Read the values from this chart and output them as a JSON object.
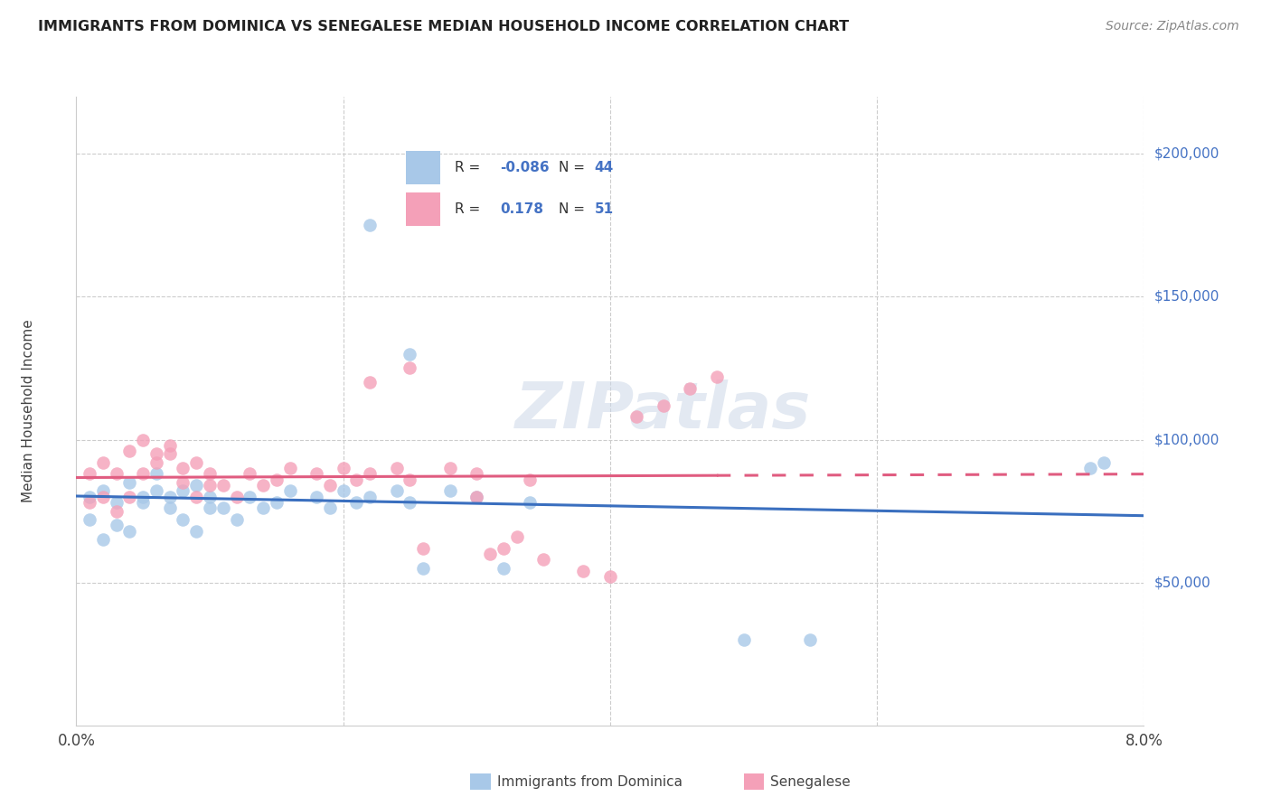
{
  "title": "IMMIGRANTS FROM DOMINICA VS SENEGALESE MEDIAN HOUSEHOLD INCOME CORRELATION CHART",
  "source": "Source: ZipAtlas.com",
  "ylabel": "Median Household Income",
  "xlim": [
    0.0,
    0.08
  ],
  "ylim": [
    0,
    220000
  ],
  "blue_color": "#a8c8e8",
  "pink_color": "#f4a0b8",
  "line_blue": "#3a6fbf",
  "line_pink": "#e05c80",
  "grid_color": "#cccccc",
  "watermark": "ZIPatlas",
  "dominica_x": [
    0.001,
    0.001,
    0.002,
    0.002,
    0.003,
    0.003,
    0.004,
    0.004,
    0.005,
    0.005,
    0.006,
    0.006,
    0.007,
    0.007,
    0.008,
    0.008,
    0.009,
    0.009,
    0.01,
    0.01,
    0.011,
    0.012,
    0.013,
    0.014,
    0.015,
    0.016,
    0.018,
    0.019,
    0.02,
    0.021,
    0.022,
    0.024,
    0.025,
    0.026,
    0.028,
    0.03,
    0.032,
    0.034,
    0.022,
    0.025,
    0.05,
    0.055,
    0.076,
    0.077
  ],
  "dominica_y": [
    80000,
    72000,
    82000,
    65000,
    78000,
    70000,
    85000,
    68000,
    80000,
    78000,
    88000,
    82000,
    80000,
    76000,
    82000,
    72000,
    84000,
    68000,
    80000,
    76000,
    76000,
    72000,
    80000,
    76000,
    78000,
    82000,
    80000,
    76000,
    82000,
    78000,
    80000,
    82000,
    78000,
    55000,
    82000,
    80000,
    55000,
    78000,
    175000,
    130000,
    30000,
    30000,
    90000,
    92000
  ],
  "senegalese_x": [
    0.001,
    0.001,
    0.002,
    0.002,
    0.003,
    0.003,
    0.004,
    0.004,
    0.005,
    0.005,
    0.006,
    0.006,
    0.007,
    0.007,
    0.008,
    0.008,
    0.009,
    0.009,
    0.01,
    0.01,
    0.011,
    0.012,
    0.013,
    0.014,
    0.015,
    0.016,
    0.018,
    0.019,
    0.02,
    0.021,
    0.022,
    0.024,
    0.025,
    0.026,
    0.028,
    0.03,
    0.032,
    0.034,
    0.022,
    0.025,
    0.03,
    0.031,
    0.033,
    0.035,
    0.038,
    0.04,
    0.042,
    0.044,
    0.046,
    0.048
  ],
  "senegalese_y": [
    88000,
    78000,
    92000,
    80000,
    88000,
    75000,
    96000,
    80000,
    100000,
    88000,
    95000,
    92000,
    98000,
    95000,
    90000,
    85000,
    92000,
    80000,
    88000,
    84000,
    84000,
    80000,
    88000,
    84000,
    86000,
    90000,
    88000,
    84000,
    90000,
    86000,
    88000,
    90000,
    86000,
    62000,
    90000,
    88000,
    62000,
    86000,
    120000,
    125000,
    80000,
    60000,
    66000,
    58000,
    54000,
    52000,
    108000,
    112000,
    118000,
    122000
  ],
  "ytick_vals": [
    50000,
    100000,
    150000,
    200000
  ],
  "ytick_labels": [
    "$50,000",
    "$100,000",
    "$150,000",
    "$200,000"
  ],
  "xtick_vals": [
    0.0,
    0.02,
    0.04,
    0.06,
    0.08
  ],
  "xtick_labels": [
    "0.0%",
    "",
    "",
    "",
    "8.0%"
  ]
}
